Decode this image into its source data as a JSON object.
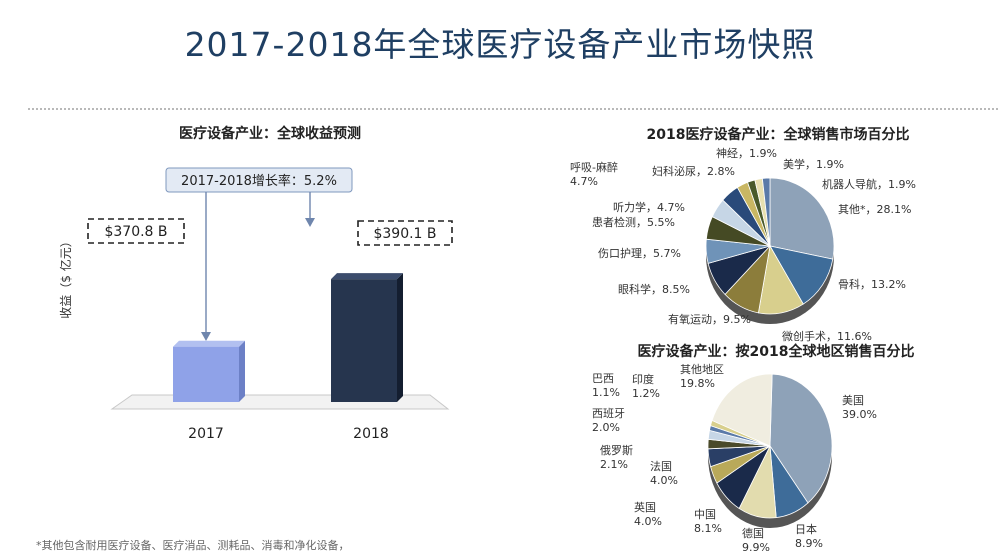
{
  "page_title": "2017-2018年全球医疗设备产业市场快照",
  "footnote": "*其他包含耐用医疗设备、医疗消品、测耗品、消毒和净化设备，",
  "colors": {
    "title": "#1f3f63",
    "bar2017": "#8fa2e8",
    "bar2018": "#26354e"
  },
  "chart_data": [
    {
      "type": "bar",
      "title": "医疗设备产业：全球收益预测",
      "ylabel": "收益（$ 亿元）",
      "categories": [
        "2017",
        "2018"
      ],
      "values": [
        370.8,
        390.1
      ],
      "value_labels": [
        "$370.8 B",
        "$390.1 B"
      ],
      "callout": "2017-2018增长率：5.2%",
      "ylim": [
        355,
        395
      ],
      "grid": false
    },
    {
      "type": "pie",
      "title": "2018医疗设备产业：全球销售市场百分比",
      "slices": [
        {
          "name": "其他*",
          "value": 28.1,
          "label_line1": "其他*，28.1%",
          "label_line2": "",
          "color": "#8ea2b8"
        },
        {
          "name": "骨科",
          "value": 13.2,
          "label_line1": "骨科，13.2%",
          "label_line2": "",
          "color": "#3e6c99"
        },
        {
          "name": "微创手术",
          "value": 11.6,
          "label_line1": "微创手术，11.6%",
          "label_line2": "",
          "color": "#d8cf8d"
        },
        {
          "name": "有氧运动",
          "value": 9.5,
          "label_line1": "有氧运动，9.5%",
          "label_line2": "",
          "color": "#8c7d3b"
        },
        {
          "name": "眼科学",
          "value": 8.5,
          "label_line1": "眼科学，8.5%",
          "label_line2": "",
          "color": "#1a2a4a"
        },
        {
          "name": "伤口护理",
          "value": 5.7,
          "label_line1": "伤口护理，5.7%",
          "label_line2": "",
          "color": "#6f93b8"
        },
        {
          "name": "患者检测",
          "value": 5.5,
          "label_line1": "患者检测，5.5%",
          "label_line2": "",
          "color": "#454a24"
        },
        {
          "name": "听力学",
          "value": 4.7,
          "label_line1": "听力学，4.7%",
          "label_line2": "",
          "color": "#c6d6e6"
        },
        {
          "name": "呼吸-麻醉",
          "value": 4.7,
          "label_line1": "呼吸-麻醉",
          "label_line2": "4.7%",
          "color": "#2a4a7a"
        },
        {
          "name": "妇科泌尿",
          "value": 2.8,
          "label_line1": "妇科泌尿，2.8%",
          "label_line2": "",
          "color": "#c9b763"
        },
        {
          "name": "神经",
          "value": 1.9,
          "label_line1": "神经，1.9%",
          "label_line2": "",
          "color": "#4a5a2a"
        },
        {
          "name": "美学",
          "value": 1.9,
          "label_line1": "美学，1.9%",
          "label_line2": "",
          "color": "#e8e0b0"
        },
        {
          "name": "机器人导航",
          "value": 1.9,
          "label_line1": "机器人导航，1.9%",
          "label_line2": "",
          "color": "#5a7aa8"
        }
      ]
    },
    {
      "type": "pie",
      "title": "医疗设备产业：按2018全球地区销售百分比",
      "slices": [
        {
          "name": "美国",
          "value": 39.0,
          "label_line1": "美国",
          "label_line2": "39.0%",
          "color": "#8ea2b8"
        },
        {
          "name": "日本",
          "value": 8.9,
          "label_line1": "日本",
          "label_line2": "8.9%",
          "color": "#3e6c99"
        },
        {
          "name": "德国",
          "value": 9.9,
          "label_line1": "德国",
          "label_line2": "9.9%",
          "color": "#e2dcae"
        },
        {
          "name": "中国",
          "value": 8.1,
          "label_line1": "中国",
          "label_line2": "8.1%",
          "color": "#1a2a4a"
        },
        {
          "name": "英国",
          "value": 4.0,
          "label_line1": "英国",
          "label_line2": "4.0%",
          "color": "#b9a95a"
        },
        {
          "name": "法国",
          "value": 4.0,
          "label_line1": "法国",
          "label_line2": "4.0%",
          "color": "#2a3f66"
        },
        {
          "name": "俄罗斯",
          "value": 2.1,
          "label_line1": "俄罗斯",
          "label_line2": "2.1%",
          "color": "#4a4a2a"
        },
        {
          "name": "西班牙",
          "value": 2.0,
          "label_line1": "西班牙",
          "label_line2": "2.0%",
          "color": "#c6d6e6"
        },
        {
          "name": "巴西",
          "value": 1.1,
          "label_line1": "巴西",
          "label_line2": "1.1%",
          "color": "#5a7aa8"
        },
        {
          "name": "印度",
          "value": 1.2,
          "label_line1": "印度",
          "label_line2": "1.2%",
          "color": "#d8cf8d"
        },
        {
          "name": "其他地区",
          "value": 19.8,
          "label_line1": "其他地区",
          "label_line2": "19.8%",
          "color": "#f0ede0"
        }
      ]
    }
  ]
}
